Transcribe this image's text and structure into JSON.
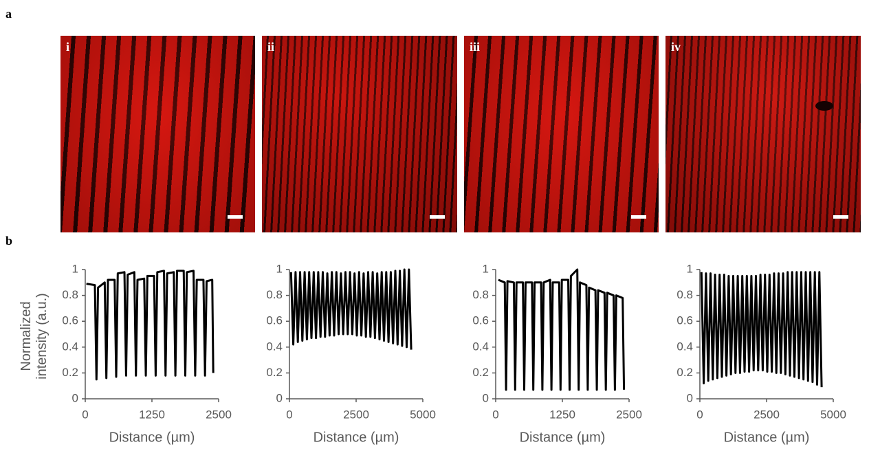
{
  "figure": {
    "panel_a": "a",
    "panel_b": "b",
    "image_labels": [
      "i",
      "ii",
      "iii",
      "iv"
    ]
  },
  "chart_data": [
    {
      "type": "line",
      "color": "#000000",
      "y_label": "Normalized intensity (a.u.)",
      "x_label": "Distance (µm)",
      "xlim": [
        0,
        2500
      ],
      "xticks": [
        0,
        1250,
        2500
      ],
      "ylim": [
        0,
        1
      ],
      "yticks": [
        0,
        0.2,
        0.4,
        0.6,
        0.8,
        1
      ],
      "x": [
        20,
        180,
        210,
        240,
        365,
        395,
        425,
        550,
        580,
        610,
        735,
        765,
        795,
        920,
        950,
        980,
        1105,
        1135,
        1165,
        1290,
        1320,
        1350,
        1475,
        1505,
        1535,
        1660,
        1690,
        1720,
        1845,
        1875,
        1905,
        2030,
        2060,
        2090,
        2215,
        2245,
        2275,
        2380,
        2400
      ],
      "values": [
        0.89,
        0.88,
        0.15,
        0.86,
        0.9,
        0.16,
        0.92,
        0.92,
        0.17,
        0.97,
        0.98,
        0.18,
        0.96,
        0.98,
        0.18,
        0.92,
        0.93,
        0.18,
        0.95,
        0.95,
        0.18,
        0.98,
        0.99,
        0.18,
        0.97,
        0.98,
        0.18,
        0.99,
        0.99,
        0.18,
        0.98,
        0.99,
        0.18,
        0.92,
        0.92,
        0.18,
        0.91,
        0.92,
        0.2
      ]
    },
    {
      "type": "line",
      "color": "#000000",
      "x_label": "Distance (µm)",
      "xlim": [
        0,
        5000
      ],
      "xticks": [
        0,
        2500,
        5000
      ],
      "ylim": [
        0,
        1
      ],
      "yticks": [
        0,
        0.2,
        0.4,
        0.6,
        0.8,
        1
      ],
      "x": [
        60,
        145,
        230,
        315,
        400,
        485,
        570,
        655,
        740,
        825,
        910,
        995,
        1080,
        1165,
        1250,
        1335,
        1420,
        1505,
        1590,
        1675,
        1760,
        1845,
        1930,
        2015,
        2100,
        2185,
        2270,
        2355,
        2440,
        2525,
        2610,
        2695,
        2780,
        2865,
        2950,
        3035,
        3120,
        3205,
        3290,
        3375,
        3460,
        3545,
        3630,
        3715,
        3800,
        3885,
        3970,
        4055,
        4140,
        4225,
        4310,
        4395,
        4480,
        4565
      ],
      "values": [
        0.98,
        0.42,
        0.98,
        0.44,
        0.98,
        0.45,
        0.98,
        0.46,
        0.98,
        0.47,
        0.98,
        0.47,
        0.98,
        0.48,
        0.98,
        0.48,
        0.97,
        0.49,
        0.98,
        0.49,
        0.98,
        0.5,
        0.97,
        0.5,
        0.98,
        0.5,
        0.98,
        0.5,
        0.97,
        0.49,
        0.98,
        0.49,
        0.97,
        0.48,
        0.98,
        0.48,
        0.98,
        0.47,
        0.97,
        0.46,
        0.98,
        0.45,
        0.98,
        0.44,
        0.98,
        0.43,
        0.99,
        0.42,
        0.99,
        0.41,
        1,
        0.4,
        1,
        0.38
      ]
    },
    {
      "type": "line",
      "color": "#000000",
      "x_label": "Distance (µm)",
      "xlim": [
        0,
        2500
      ],
      "xticks": [
        0,
        1250,
        2500
      ],
      "ylim": [
        0,
        1
      ],
      "yticks": [
        0,
        0.2,
        0.4,
        0.6,
        0.8,
        1
      ],
      "x": [
        50,
        170,
        195,
        220,
        340,
        365,
        390,
        510,
        535,
        560,
        680,
        705,
        730,
        850,
        875,
        900,
        1020,
        1045,
        1070,
        1190,
        1215,
        1240,
        1360,
        1385,
        1410,
        1530,
        1555,
        1580,
        1700,
        1725,
        1750,
        1870,
        1895,
        1920,
        2040,
        2065,
        2090,
        2210,
        2235,
        2260,
        2380,
        2405
      ],
      "values": [
        0.92,
        0.9,
        0.07,
        0.91,
        0.9,
        0.07,
        0.9,
        0.9,
        0.07,
        0.9,
        0.9,
        0.07,
        0.9,
        0.9,
        0.07,
        0.9,
        0.92,
        0.07,
        0.9,
        0.9,
        0.07,
        0.92,
        0.92,
        0.07,
        0.95,
        1,
        0.07,
        0.9,
        0.88,
        0.07,
        0.86,
        0.84,
        0.07,
        0.84,
        0.82,
        0.07,
        0.82,
        0.8,
        0.07,
        0.8,
        0.78,
        0.07
      ]
    },
    {
      "type": "line",
      "color": "#000000",
      "x_label": "Distance (µm)",
      "xlim": [
        0,
        5000
      ],
      "xticks": [
        0,
        2500,
        5000
      ],
      "ylim": [
        0,
        1
      ],
      "yticks": [
        0,
        0.2,
        0.4,
        0.6,
        0.8,
        1
      ],
      "x": [
        60,
        145,
        230,
        315,
        400,
        485,
        570,
        655,
        740,
        825,
        910,
        995,
        1080,
        1165,
        1250,
        1335,
        1420,
        1505,
        1590,
        1675,
        1760,
        1845,
        1930,
        2015,
        2100,
        2185,
        2270,
        2355,
        2440,
        2525,
        2610,
        2695,
        2780,
        2865,
        2950,
        3035,
        3120,
        3205,
        3290,
        3375,
        3460,
        3545,
        3630,
        3715,
        3800,
        3885,
        3970,
        4055,
        4140,
        4225,
        4310,
        4395,
        4480,
        4565
      ],
      "values": [
        0.98,
        0.12,
        0.97,
        0.14,
        0.97,
        0.15,
        0.96,
        0.16,
        0.96,
        0.17,
        0.96,
        0.18,
        0.95,
        0.19,
        0.95,
        0.2,
        0.95,
        0.2,
        0.95,
        0.21,
        0.95,
        0.21,
        0.95,
        0.22,
        0.95,
        0.22,
        0.96,
        0.22,
        0.96,
        0.21,
        0.96,
        0.21,
        0.97,
        0.2,
        0.97,
        0.2,
        0.97,
        0.19,
        0.98,
        0.18,
        0.98,
        0.17,
        0.98,
        0.16,
        0.98,
        0.15,
        0.98,
        0.14,
        0.98,
        0.13,
        0.98,
        0.11,
        0.98,
        0.09
      ]
    }
  ]
}
